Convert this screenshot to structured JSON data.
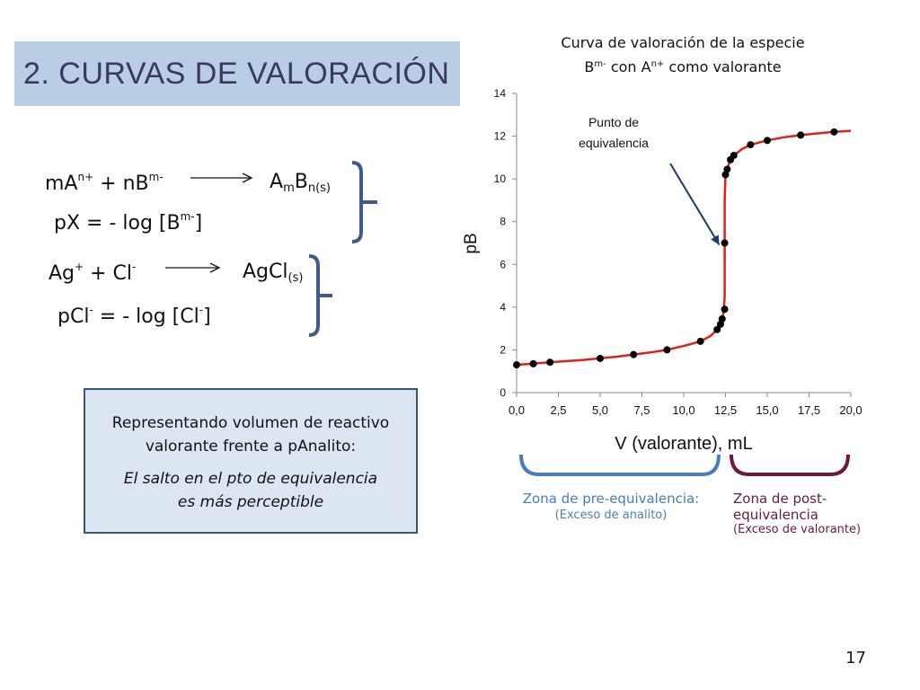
{
  "slide": {
    "title": "2. CURVAS DE VALORACIÓN",
    "page_number": "17",
    "colors": {
      "title_bg": "#b9cde5",
      "info_bg": "#dce6f2",
      "info_border": "#37557a",
      "bracket": "#3f5a8a",
      "curve": "#e0201b",
      "pre_zone": "#4a7db8",
      "post_zone": "#6b1a3f"
    }
  },
  "equations": {
    "line1": {
      "left": "mA",
      "left_sup": "n+",
      "plus": " + nB",
      "plus_sup": "m-",
      "product": "A",
      "product_sub1": "m",
      "product_mid": "B",
      "product_sub2": "n(s)"
    },
    "line2": {
      "text": "pX = - log [B",
      "sup": "m-",
      "close": "]"
    },
    "line3": {
      "left": "Ag",
      "left_sup": "+",
      "plus": " + Cl",
      "plus_sup": "-",
      "product": "AgCl",
      "product_sub": "(s)"
    },
    "line4": {
      "text": "pCl",
      "sup": "-",
      "rest": " = - log [Cl",
      "sup2": "-",
      "close": "]"
    }
  },
  "info_box": {
    "line1": "Representando volumen de reactivo",
    "line2": "valorante frente a pAnalito:",
    "line3": "El salto en el pto de equivalencia",
    "line4": "es más perceptible"
  },
  "chart_data": {
    "type": "scatter",
    "title_line1": "Curva de valoración de la especie",
    "title_line2_a": "B",
    "title_line2_sup1": "m-",
    "title_line2_b": " con A",
    "title_line2_sup2": "n+",
    "title_line2_c": " como valorante",
    "xlabel": "V (valorante), mL",
    "ylabel": "pB",
    "xlim": [
      0,
      20
    ],
    "ylim": [
      0,
      14
    ],
    "x_ticks": [
      "0,0",
      "2,5",
      "5,0",
      "7,5",
      "10,0",
      "12,5",
      "15,0",
      "17,5",
      "20,0"
    ],
    "y_ticks": [
      "0",
      "2",
      "4",
      "6",
      "8",
      "10",
      "12",
      "14"
    ],
    "grid": false,
    "annotation": {
      "line1": "Punto de",
      "line2": "equivalencia",
      "target": [
        12.45,
        7.0
      ]
    },
    "points": [
      [
        0.0,
        1.3
      ],
      [
        1.0,
        1.35
      ],
      [
        2.0,
        1.42
      ],
      [
        5.0,
        1.6
      ],
      [
        7.0,
        1.78
      ],
      [
        9.0,
        2.0
      ],
      [
        11.0,
        2.4
      ],
      [
        12.0,
        2.95
      ],
      [
        12.2,
        3.2
      ],
      [
        12.3,
        3.45
      ],
      [
        12.45,
        3.9
      ],
      [
        12.45,
        7.0
      ],
      [
        12.5,
        10.2
      ],
      [
        12.6,
        10.45
      ],
      [
        12.8,
        10.9
      ],
      [
        13.0,
        11.1
      ],
      [
        14.0,
        11.6
      ],
      [
        15.0,
        11.8
      ],
      [
        17.0,
        12.05
      ],
      [
        19.0,
        12.2
      ]
    ],
    "curve": [
      [
        0.0,
        1.3
      ],
      [
        2.0,
        1.42
      ],
      [
        4.0,
        1.53
      ],
      [
        6.0,
        1.68
      ],
      [
        8.0,
        1.88
      ],
      [
        9.0,
        2.0
      ],
      [
        10.0,
        2.18
      ],
      [
        11.0,
        2.4
      ],
      [
        11.6,
        2.65
      ],
      [
        12.0,
        2.95
      ],
      [
        12.2,
        3.2
      ],
      [
        12.3,
        3.45
      ],
      [
        12.4,
        3.8
      ],
      [
        12.45,
        4.5
      ],
      [
        12.45,
        9.0
      ],
      [
        12.5,
        10.2
      ],
      [
        12.7,
        10.7
      ],
      [
        13.0,
        11.1
      ],
      [
        13.5,
        11.4
      ],
      [
        14.0,
        11.6
      ],
      [
        15.0,
        11.8
      ],
      [
        16.0,
        11.95
      ],
      [
        17.0,
        12.05
      ],
      [
        18.0,
        12.13
      ],
      [
        19.0,
        12.2
      ],
      [
        20.0,
        12.25
      ]
    ]
  },
  "zones": {
    "pre_label": "Zona de pre-equivalencia:",
    "pre_sub": "(Exceso de analito)",
    "post_label_line1": "Zona de post-",
    "post_label_line2": "equivalencia",
    "post_sub": "(Exceso de valorante)"
  }
}
